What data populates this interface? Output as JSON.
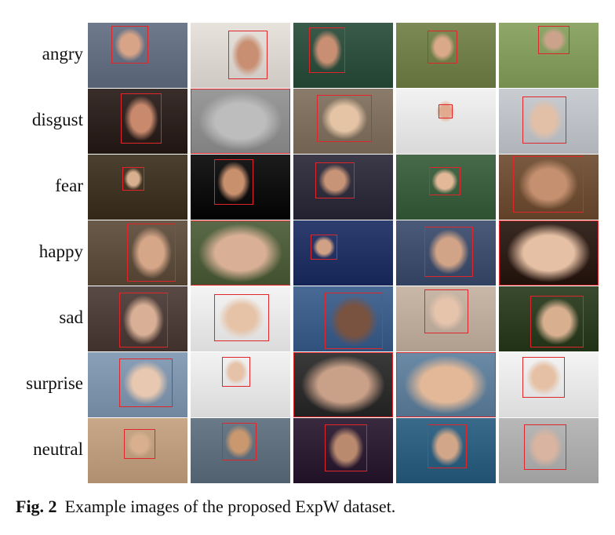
{
  "caption": {
    "fig_label": "Fig. 2",
    "text": "Example images of the proposed ExpW dataset."
  },
  "rows": [
    {
      "label": "angry",
      "images": [
        {
          "bg": "#6f7a8c",
          "face": "#d7a487",
          "box": [
            30,
            4,
            47,
            48
          ]
        },
        {
          "bg": "#e8e2dc",
          "face": "#c98f73",
          "box": [
            48,
            10,
            50,
            62
          ]
        },
        {
          "bg": "#3a5a4a",
          "face": "#c98f73",
          "box": [
            20,
            6,
            46,
            58
          ]
        },
        {
          "bg": "#7c8a56",
          "face": "#d9a98a",
          "box": [
            40,
            10,
            38,
            42
          ]
        },
        {
          "bg": "#8fa86a",
          "face": "#caa38a",
          "box": [
            50,
            4,
            40,
            36
          ]
        }
      ]
    },
    {
      "label": "disgust",
      "images": [
        {
          "bg": "#3a2e2b",
          "face": "#c8896d",
          "box": [
            42,
            6,
            52,
            64
          ]
        },
        {
          "bg": "#9a9a9a",
          "face": "#bdbdbd",
          "box": [
            0,
            0,
            127,
            83
          ]
        },
        {
          "bg": "#8a7b6a",
          "face": "#e4c4a5",
          "box": [
            30,
            8,
            70,
            60
          ]
        },
        {
          "bg": "#f2f2f2",
          "face": "#e2ab8f",
          "box": [
            54,
            20,
            18,
            18
          ]
        },
        {
          "bg": "#c9cdd2",
          "face": "#e2c0a8",
          "box": [
            30,
            10,
            56,
            60
          ]
        }
      ]
    },
    {
      "label": "fear",
      "images": [
        {
          "bg": "#4c4030",
          "face": "#d8b08f",
          "box": [
            44,
            16,
            28,
            30
          ]
        },
        {
          "bg": "#1c1c1c",
          "face": "#c9906e",
          "box": [
            30,
            6,
            50,
            58
          ]
        },
        {
          "bg": "#3c3a48",
          "face": "#c89478",
          "box": [
            28,
            10,
            50,
            46
          ]
        },
        {
          "bg": "#466a4a",
          "face": "#e2b898",
          "box": [
            42,
            16,
            40,
            36
          ]
        },
        {
          "bg": "#7a5a40",
          "face": "#c59070",
          "box": [
            18,
            2,
            90,
            72
          ]
        }
      ]
    },
    {
      "label": "happy",
      "images": [
        {
          "bg": "#6a5a4a",
          "face": "#d6a688",
          "box": [
            50,
            4,
            62,
            74
          ]
        },
        {
          "bg": "#5a6a48",
          "face": "#d9b096",
          "box": [
            0,
            0,
            127,
            83
          ]
        },
        {
          "bg": "#2e3e6e",
          "face": "#d1a185",
          "box": [
            22,
            18,
            34,
            32
          ]
        },
        {
          "bg": "#4a5a78",
          "face": "#d2a487",
          "box": [
            36,
            8,
            62,
            64
          ]
        },
        {
          "bg": "#3a2a24",
          "face": "#e6c0a4",
          "box": [
            0,
            0,
            127,
            83
          ]
        }
      ]
    },
    {
      "label": "sad",
      "images": [
        {
          "bg": "#5a4a46",
          "face": "#d9b096",
          "box": [
            40,
            8,
            62,
            70
          ]
        },
        {
          "bg": "#f4f4f4",
          "face": "#e6c2a6",
          "box": [
            30,
            10,
            70,
            60
          ]
        },
        {
          "bg": "#4a6a96",
          "face": "#7a5240",
          "box": [
            40,
            8,
            74,
            72
          ]
        },
        {
          "bg": "#c9b8a8",
          "face": "#e6c4ac",
          "box": [
            36,
            4,
            56,
            56
          ]
        },
        {
          "bg": "#3a4a2e",
          "face": "#d8b090",
          "box": [
            40,
            12,
            68,
            66
          ]
        }
      ]
    },
    {
      "label": "surprise",
      "images": [
        {
          "bg": "#8aa0b8",
          "face": "#e8c8b0",
          "box": [
            40,
            8,
            68,
            62
          ]
        },
        {
          "bg": "#f2f2f2",
          "face": "#e6c2a8",
          "box": [
            40,
            6,
            36,
            38
          ]
        },
        {
          "bg": "#3a3a3a",
          "face": "#c9a088",
          "box": [
            0,
            0,
            127,
            83
          ]
        },
        {
          "bg": "#6a8aa6",
          "face": "#e2b898",
          "box": [
            0,
            0,
            127,
            83
          ]
        },
        {
          "bg": "#f4f4f4",
          "face": "#e6c0a4",
          "box": [
            30,
            6,
            54,
            52
          ]
        }
      ]
    },
    {
      "label": "neutral",
      "images": [
        {
          "bg": "#c8a888",
          "face": "#d8b090",
          "box": [
            46,
            14,
            40,
            38
          ]
        },
        {
          "bg": "#6a7a88",
          "face": "#c9986e",
          "box": [
            40,
            6,
            44,
            48
          ]
        },
        {
          "bg": "#3a2a40",
          "face": "#b98a6e",
          "box": [
            40,
            8,
            54,
            60
          ]
        },
        {
          "bg": "#3a6a8a",
          "face": "#d2a688",
          "box": [
            40,
            8,
            50,
            56
          ]
        },
        {
          "bg": "#b8b8b8",
          "face": "#d9b4a0",
          "box": [
            32,
            8,
            54,
            58
          ]
        }
      ]
    }
  ]
}
